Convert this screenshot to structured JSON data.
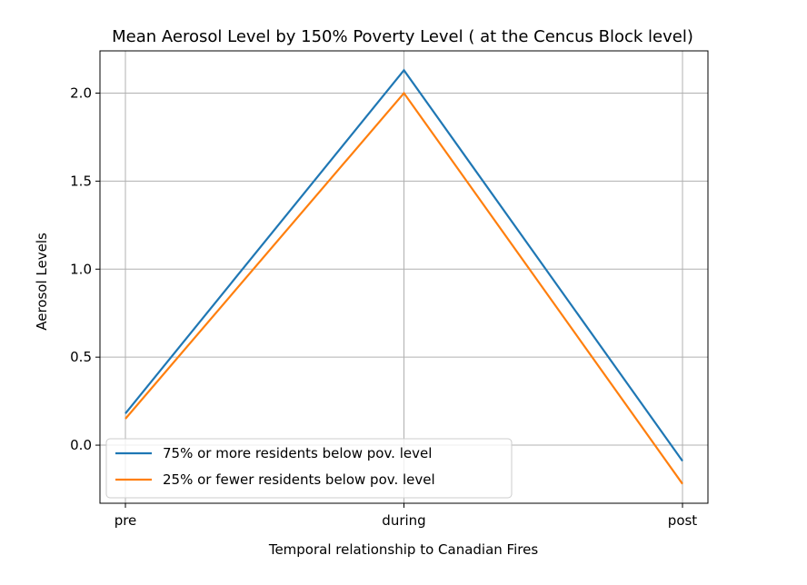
{
  "chart_data": {
    "type": "line",
    "title": "Mean Aerosol Level by 150% Poverty Level ( at the Cencus Block level)",
    "xlabel": "Temporal relationship to Canadian Fires",
    "ylabel": "Aerosol Levels",
    "categories": [
      "pre",
      "during",
      "post"
    ],
    "ylim": [
      -0.33,
      2.24
    ],
    "yticks": [
      0.0,
      0.5,
      1.0,
      1.5,
      2.0
    ],
    "ytick_labels": [
      "0.0",
      "0.5",
      "1.0",
      "1.5",
      "2.0"
    ],
    "grid": true,
    "legend_position": "bottom-left",
    "series": [
      {
        "name": "75% or more residents below pov. level",
        "color": "#1f77b4",
        "values": [
          0.18,
          2.13,
          -0.09
        ]
      },
      {
        "name": "25% or fewer residents below pov. level",
        "color": "#ff7f0e",
        "values": [
          0.15,
          2.0,
          -0.22
        ]
      }
    ]
  }
}
